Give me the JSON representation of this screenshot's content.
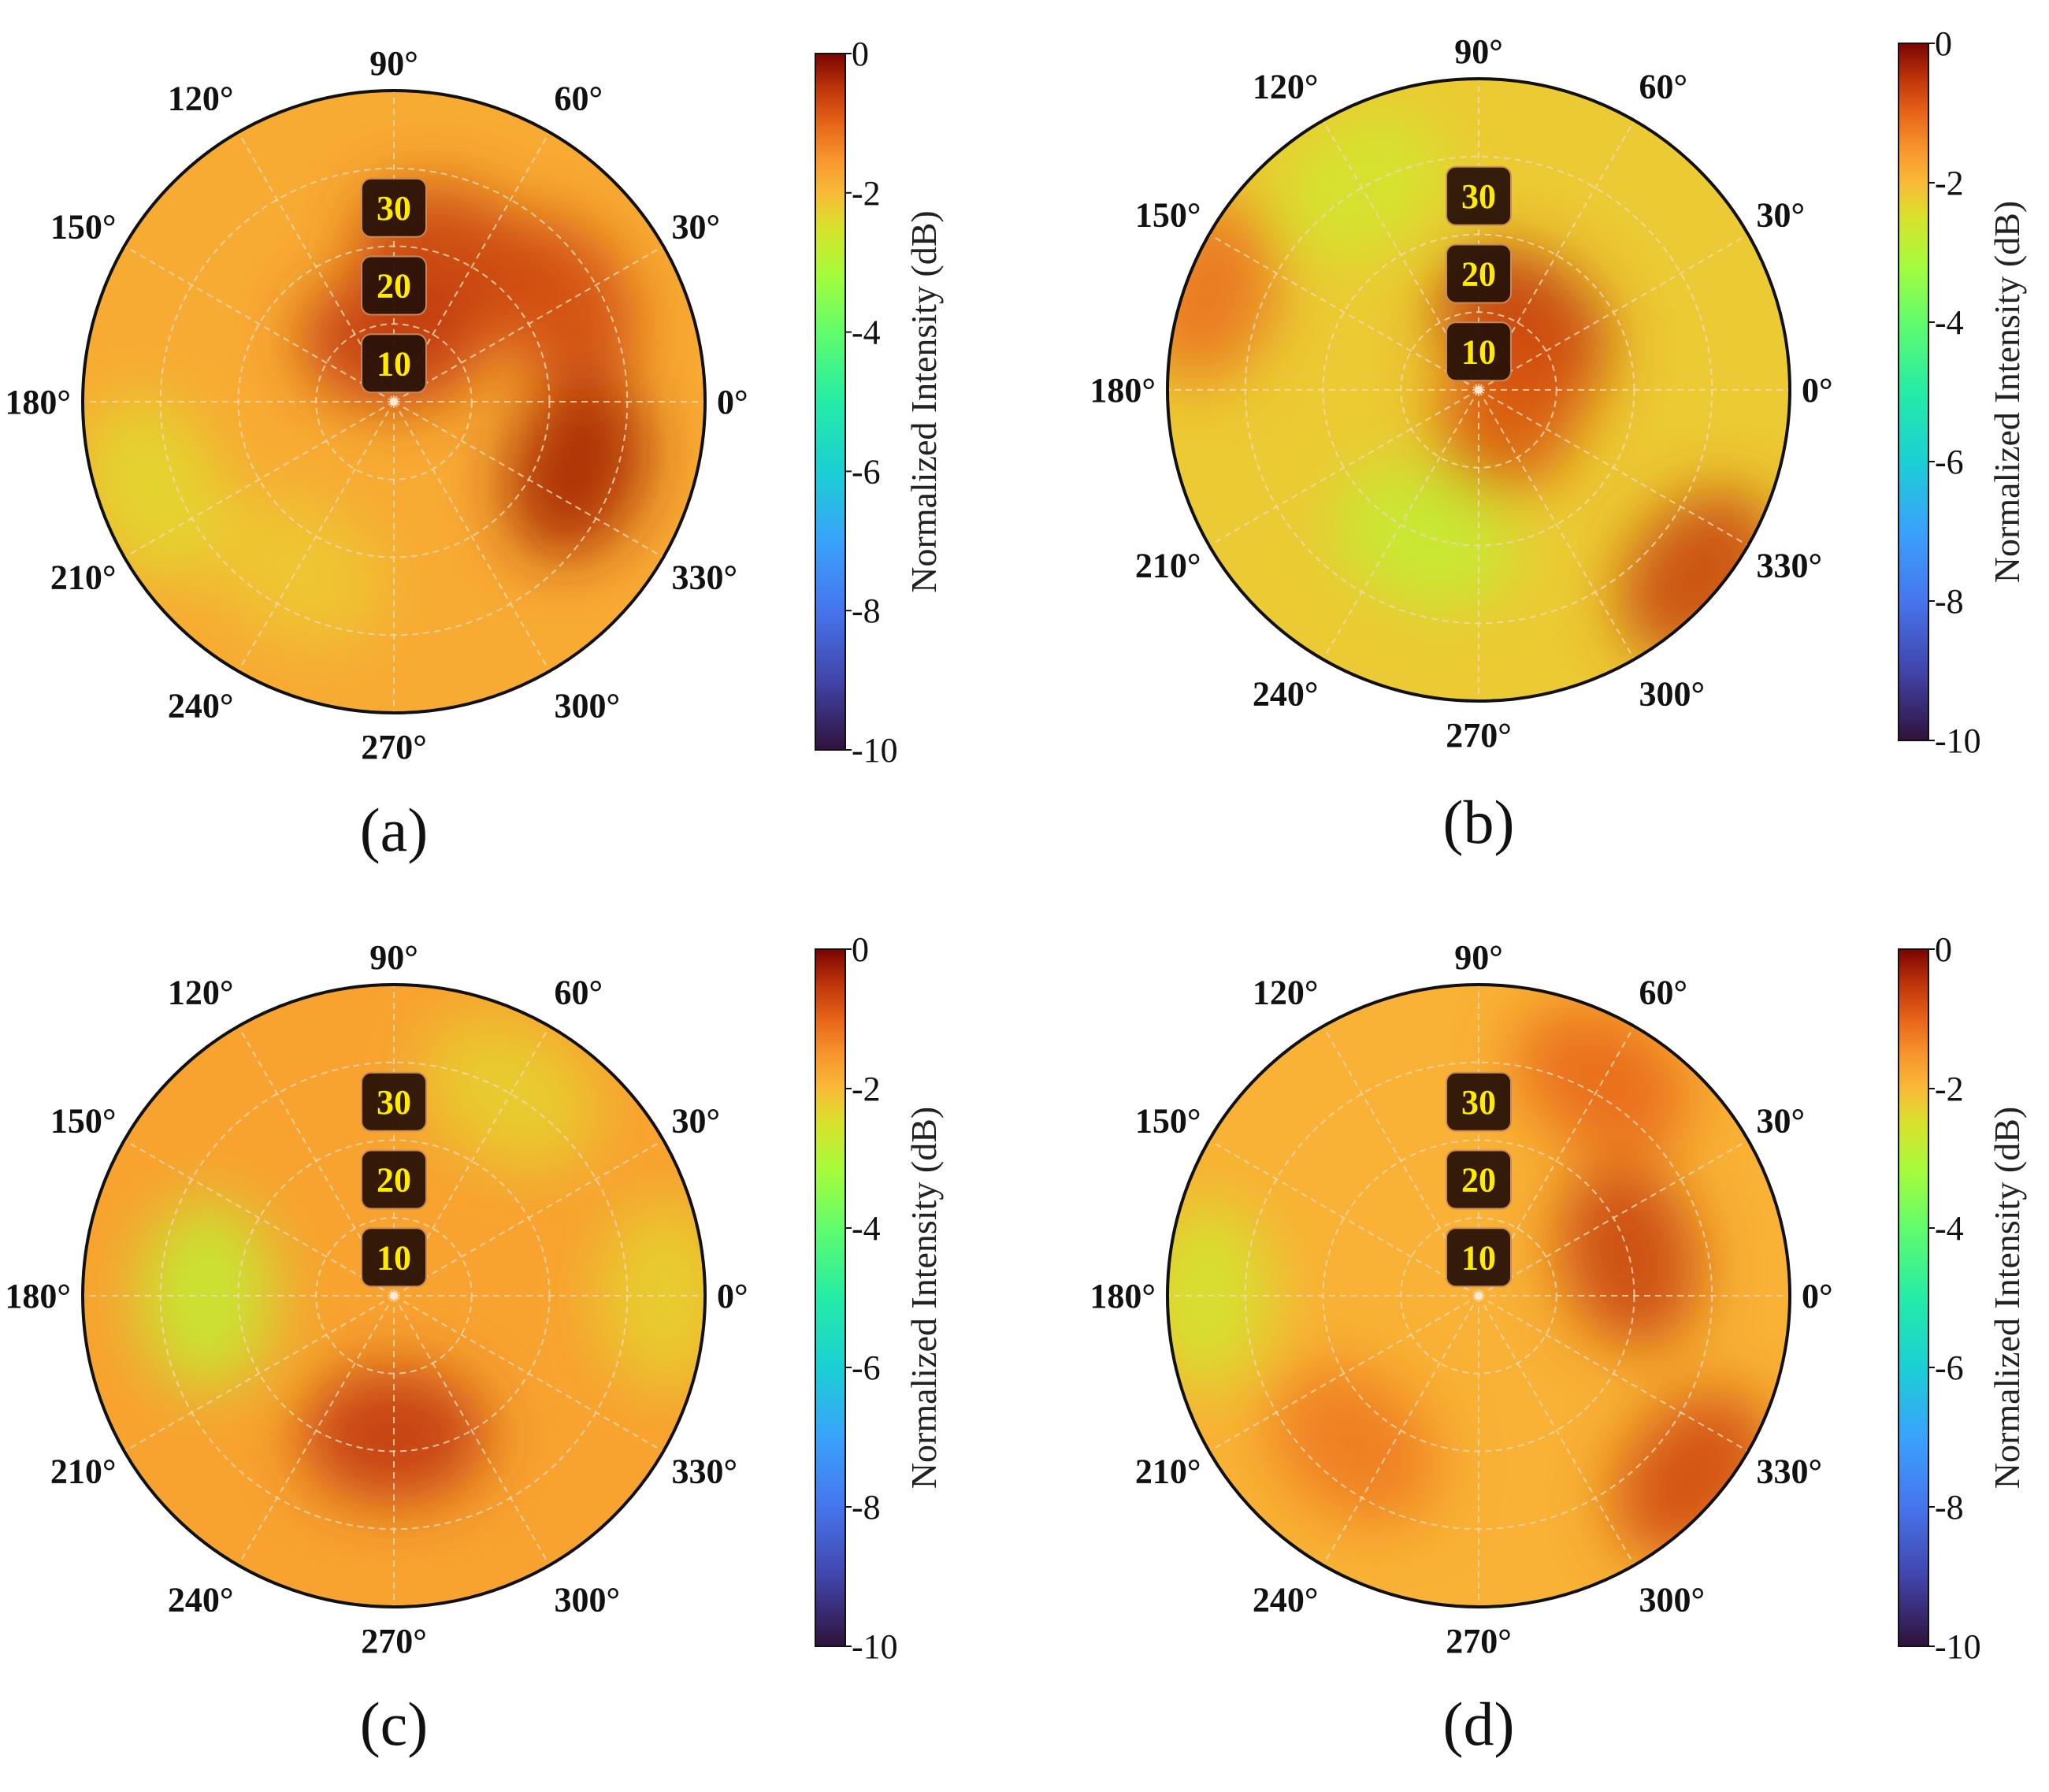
{
  "chart_data": [
    {
      "type": "heatmap",
      "panel": "a",
      "caption": "(a)",
      "projection": "polar",
      "theta_tick_labels": [
        "0°",
        "30°",
        "60°",
        "90°",
        "120°",
        "150°",
        "180°",
        "210°",
        "240°",
        "270°",
        "300°",
        "330°"
      ],
      "r_tick_labels": [
        "10",
        "20",
        "30"
      ],
      "rlim": [
        0,
        40
      ],
      "grid": true,
      "colorbar": {
        "label": "Normalized Intensity (dB)",
        "ticks": [
          "0",
          "-2",
          "-4",
          "-6",
          "-8",
          "-10"
        ],
        "range": [
          -10,
          0
        ],
        "colormap": "turbo"
      },
      "base_value_db": -1.8,
      "features": [
        {
          "theta_deg": 70,
          "r": 20,
          "value_db": -0.6
        },
        {
          "theta_deg": 30,
          "r": 25,
          "value_db": -0.7
        },
        {
          "theta_deg": 340,
          "r": 25,
          "value_db": -0.3
        },
        {
          "theta_deg": 90,
          "r": 8,
          "value_db": -0.5
        },
        {
          "theta_deg": 200,
          "r": 33,
          "value_db": -2.4
        },
        {
          "theta_deg": 240,
          "r": 25,
          "value_db": -2.2
        }
      ]
    },
    {
      "type": "heatmap",
      "panel": "b",
      "caption": "(b)",
      "projection": "polar",
      "theta_tick_labels": [
        "0°",
        "30°",
        "60°",
        "90°",
        "120°",
        "150°",
        "180°",
        "210°",
        "240°",
        "270°",
        "300°",
        "330°"
      ],
      "r_tick_labels": [
        "10",
        "20",
        "30"
      ],
      "rlim": [
        0,
        40
      ],
      "grid": true,
      "colorbar": {
        "label": "Normalized Intensity (dB)",
        "ticks": [
          "0",
          "-2",
          "-4",
          "-6",
          "-8",
          "-10"
        ],
        "range": [
          -10,
          0
        ],
        "colormap": "turbo"
      },
      "base_value_db": -2.2,
      "features": [
        {
          "theta_deg": 55,
          "r": 10,
          "value_db": -0.5
        },
        {
          "theta_deg": 330,
          "r": 5,
          "value_db": -0.8
        },
        {
          "theta_deg": 320,
          "r": 37,
          "value_db": -0.6
        },
        {
          "theta_deg": 160,
          "r": 37,
          "value_db": -1.1
        },
        {
          "theta_deg": 250,
          "r": 20,
          "value_db": -2.8
        },
        {
          "theta_deg": 120,
          "r": 30,
          "value_db": -2.6
        }
      ]
    },
    {
      "type": "heatmap",
      "panel": "c",
      "caption": "(c)",
      "projection": "polar",
      "theta_tick_labels": [
        "0°",
        "30°",
        "60°",
        "90°",
        "120°",
        "150°",
        "180°",
        "210°",
        "240°",
        "270°",
        "300°",
        "330°"
      ],
      "r_tick_labels": [
        "10",
        "20",
        "30"
      ],
      "rlim": [
        0,
        40
      ],
      "grid": true,
      "colorbar": {
        "label": "Normalized Intensity (dB)",
        "ticks": [
          "0",
          "-2",
          "-4",
          "-6",
          "-8",
          "-10"
        ],
        "range": [
          -10,
          0
        ],
        "colormap": "turbo"
      },
      "base_value_db": -1.7,
      "features": [
        {
          "theta_deg": 270,
          "r": 18,
          "value_db": -0.5
        },
        {
          "theta_deg": 180,
          "r": 24,
          "value_db": -2.8
        },
        {
          "theta_deg": 60,
          "r": 30,
          "value_db": -2.3
        },
        {
          "theta_deg": 0,
          "r": 35,
          "value_db": -2.3
        }
      ]
    },
    {
      "type": "heatmap",
      "panel": "d",
      "caption": "(d)",
      "projection": "polar",
      "theta_tick_labels": [
        "0°",
        "30°",
        "60°",
        "90°",
        "120°",
        "150°",
        "180°",
        "210°",
        "240°",
        "270°",
        "300°",
        "330°"
      ],
      "r_tick_labels": [
        "10",
        "20",
        "30"
      ],
      "rlim": [
        0,
        40
      ],
      "grid": true,
      "colorbar": {
        "label": "Normalized Intensity (dB)",
        "ticks": [
          "0",
          "-2",
          "-4",
          "-6",
          "-8",
          "-10"
        ],
        "range": [
          -10,
          0
        ],
        "colormap": "turbo"
      },
      "base_value_db": -1.9,
      "features": [
        {
          "theta_deg": 15,
          "r": 20,
          "value_db": -0.6
        },
        {
          "theta_deg": 320,
          "r": 36,
          "value_db": -0.7
        },
        {
          "theta_deg": 60,
          "r": 32,
          "value_db": -1.0
        },
        {
          "theta_deg": 180,
          "r": 35,
          "value_db": -2.6
        },
        {
          "theta_deg": 230,
          "r": 25,
          "value_db": -1.2
        }
      ]
    }
  ]
}
